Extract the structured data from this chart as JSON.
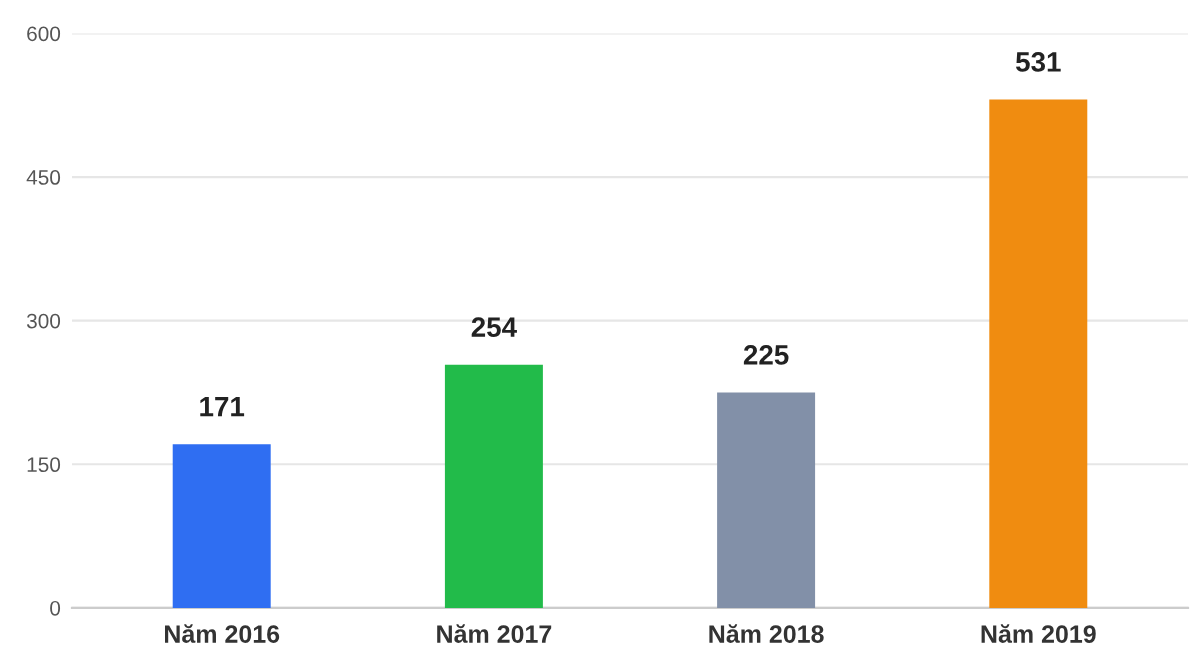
{
  "chart_data": {
    "type": "bar",
    "categories": [
      "Năm 2016",
      "Năm 2017",
      "Năm 2018",
      "Năm 2019"
    ],
    "values": [
      171,
      254,
      225,
      531
    ],
    "colors": [
      "#2f6ef2",
      "#22bb4a",
      "#8290a8",
      "#f08c10"
    ],
    "ylim": [
      0,
      600
    ],
    "yticks": [
      0,
      150,
      300,
      450,
      600
    ],
    "grid": "y",
    "data_labels": true
  }
}
